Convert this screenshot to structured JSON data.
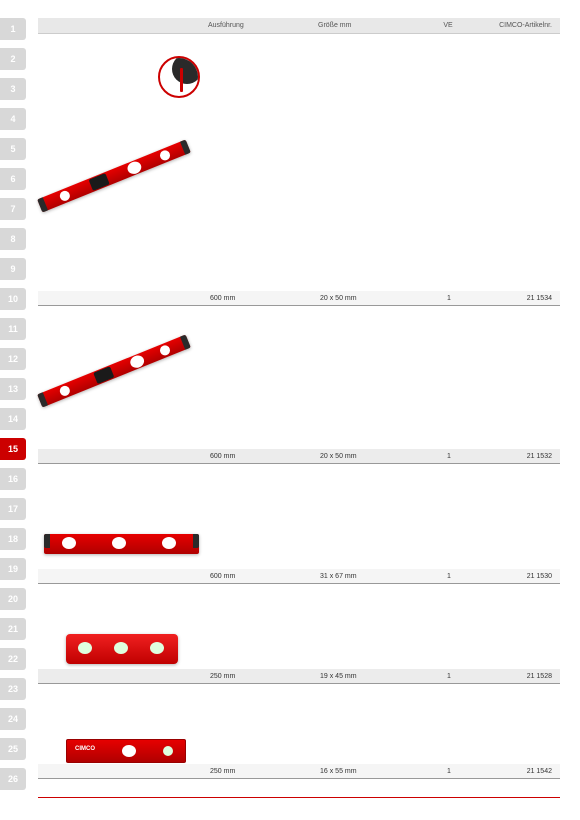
{
  "sidebar": {
    "tabs": [
      "1",
      "2",
      "3",
      "4",
      "5",
      "6",
      "7",
      "8",
      "9",
      "10",
      "11",
      "12",
      "13",
      "14",
      "15",
      "16",
      "17",
      "18",
      "19",
      "20",
      "21",
      "22",
      "23",
      "24",
      "25",
      "26"
    ],
    "active_index": 14
  },
  "header": {
    "ausfuehrung": "Ausführung",
    "groesse": "Größe mm",
    "ve": "VE",
    "artikel": "CIMCO-Artikelnr."
  },
  "rows": [
    {
      "ausf": "600 mm",
      "gross": "20 x 50 mm",
      "ve": "1",
      "art": "21 1534"
    },
    {
      "ausf": "600 mm",
      "gross": "20 x 50 mm",
      "ve": "1",
      "art": "21 1532"
    },
    {
      "ausf": "600 mm",
      "gross": "31 x 67 mm",
      "ve": "1",
      "art": "21 1530"
    },
    {
      "ausf": "250 mm",
      "gross": "19 x 45 mm",
      "ve": "1",
      "art": "21 1528"
    },
    {
      "ausf": "250 mm",
      "gross": "16 x 55 mm",
      "ve": "1",
      "art": "21 1542"
    }
  ],
  "colors": {
    "red": "#cc0000",
    "gray": "#d8d8d8"
  }
}
